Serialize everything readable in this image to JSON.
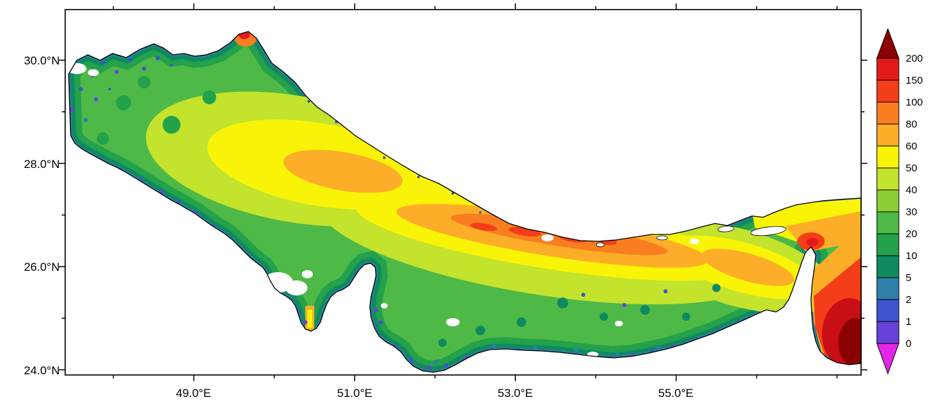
{
  "figure": {
    "background_color": "#FFFFFF",
    "frame_color": "#000000",
    "land_color": "#FFFFFF"
  },
  "axes": {
    "x": {
      "tick_labels": [
        "49.0°E",
        "51.0°E",
        "53.0°E",
        "55.0°E"
      ],
      "tick_values": [
        49,
        51,
        53,
        55
      ],
      "minor_tick_values": [
        48,
        50,
        52,
        54,
        56,
        57
      ],
      "range_deg_east": [
        47.4,
        57.3
      ]
    },
    "y": {
      "tick_labels": [
        "30.0°N",
        "28.0°N",
        "26.0°N",
        "24.0°N"
      ],
      "tick_values": [
        30,
        28,
        26,
        24
      ],
      "minor_tick_values": [
        29,
        27,
        25
      ],
      "range_deg_north": [
        23.9,
        30.98
      ]
    }
  },
  "colorbar": {
    "labels": [
      "200",
      "150",
      "100",
      "80",
      "60",
      "50",
      "40",
      "30",
      "20",
      "10",
      "5",
      "2",
      "1",
      "0"
    ],
    "segment_colors_top_to_bottom": [
      "#E31A1C",
      "#F43E17",
      "#F97E20",
      "#FDAE28",
      "#F9F407",
      "#C3E32D",
      "#8CCE36",
      "#4FB947",
      "#23A14B",
      "#0F8A60",
      "#2E7FA9",
      "#4053CE",
      "#6741D9"
    ],
    "over_arrow_color": "#8B0000",
    "under_arrow_color": "#E626E6"
  },
  "chart_data": {
    "type": "heatmap",
    "title": "",
    "xlabel": "",
    "ylabel": "",
    "x_tick_labels": [
      "49.0°E",
      "51.0°E",
      "53.0°E",
      "55.0°E"
    ],
    "y_tick_labels": [
      "30.0°N",
      "28.0°N",
      "26.0°N",
      "24.0°N"
    ],
    "x_range_deg_east": [
      47.4,
      57.3
    ],
    "y_range_deg_north": [
      23.9,
      30.98
    ],
    "color_scale_levels": [
      0,
      1,
      2,
      5,
      10,
      20,
      30,
      40,
      50,
      60,
      80,
      100,
      150,
      200
    ],
    "color_scale_colors_low_to_high": [
      "#6741D9",
      "#4053CE",
      "#2E7FA9",
      "#0F8A60",
      "#23A14B",
      "#4FB947",
      "#8CCE36",
      "#C3E32D",
      "#F9F407",
      "#FDAE28",
      "#F97E20",
      "#F43E17",
      "#E31A1C"
    ],
    "over_range_color": "#8B0000",
    "under_range_color": "#E626E6",
    "region_depicted": "Persian Gulf and western Gulf of Oman (sea area filled with values, land white)",
    "field_summary": [
      {
        "area": "northwestern basin (48-50.5E, 28-30.5N)",
        "value_range": "20-60 with 0-5 speckles near coasts"
      },
      {
        "area": "west-central core (49.5-52E near 27.5-28.3N)",
        "value_range": "60-100"
      },
      {
        "area": "central axial band (52-54.5E near 26.2-27N)",
        "value_range": "80-150"
      },
      {
        "area": "coastal fringes, around Qatar and southwest bays",
        "value_range": "0-10"
      },
      {
        "area": "southeastern basin (52-55.5E, 24.5-25.8N)",
        "value_range": "10-40"
      },
      {
        "area": "Strait of Hormuz (55.5-56.5E near 26.4N)",
        "value_range": "50-150"
      },
      {
        "area": "Gulf of Oman southeast corner",
        "value_range": "150 to >200 (dark red core)"
      },
      {
        "area": "small scattered patches over basin",
        "value_range": "no data (white)"
      },
      {
        "area": "isolated spot on north coast near 49.6E 30.5N",
        "value_range": "80-150"
      }
    ]
  }
}
